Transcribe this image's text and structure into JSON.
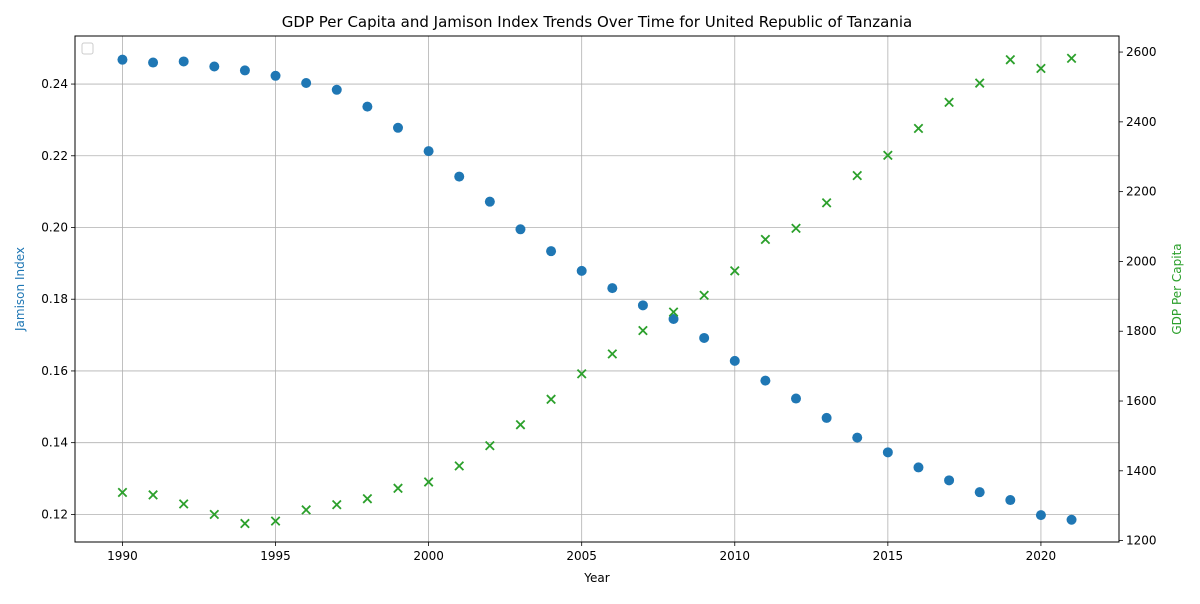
{
  "chart_data": {
    "type": "scatter",
    "title": "GDP Per Capita and Jamison Index Trends Over Time for United Republic of Tanzania",
    "xlabel": "Year",
    "ylabel_left": "Jamison Index",
    "ylabel_right": "GDP Per Capita",
    "xlim": [
      1988.45,
      1992.55
    ],
    "x_ticks": [
      1990,
      1995,
      2000,
      2005,
      2010,
      2015,
      2020
    ],
    "ylim_left": [
      0.1123,
      0.2534
    ],
    "y_ticks_left": [
      0.12,
      0.14,
      0.16,
      0.18,
      0.2,
      0.22,
      0.24
    ],
    "y_tick_labels_left": [
      "0.12",
      "0.14",
      "0.16",
      "0.18",
      "0.20",
      "0.22",
      "0.24"
    ],
    "ylim_right": [
      1196,
      2646
    ],
    "y_ticks_right": [
      1200,
      1400,
      1600,
      1800,
      2000,
      2200,
      2400,
      2600
    ],
    "y_tick_labels_right": [
      "1200",
      "1400",
      "1600",
      "1800",
      "2000",
      "2200",
      "2400",
      "2600"
    ],
    "grid": true,
    "legend": "top-left, empty",
    "colors": {
      "jamison": "#1f77b4",
      "gdp": "#2ca02c",
      "grid": "#b0b0b0",
      "axis": "#000000"
    },
    "series": [
      {
        "marker": "circle",
        "axis": "left",
        "x": [
          1990,
          1991,
          1992,
          1993,
          1994,
          1995,
          1996,
          1997,
          1998,
          1999,
          2000,
          2001,
          2002,
          2003,
          2004,
          2005,
          2006,
          2007,
          2008,
          2009,
          2010,
          2011,
          2012,
          2013,
          2014,
          2015,
          2016,
          2017,
          2018,
          2019,
          2020,
          2021
        ],
        "values": [
          0.2468,
          0.246,
          0.2463,
          0.2449,
          0.2438,
          0.2423,
          0.2403,
          0.2384,
          0.2337,
          0.2278,
          0.2213,
          0.2142,
          0.2072,
          0.1995,
          0.1934,
          0.1879,
          0.1831,
          0.1783,
          0.1745,
          0.1692,
          0.1628,
          0.1573,
          0.1523,
          0.1469,
          0.1414,
          0.1373,
          0.1331,
          0.1295,
          0.1262,
          0.124,
          0.1198,
          0.1185
        ]
      },
      {
        "marker": "x",
        "axis": "right",
        "x": [
          1990,
          1991,
          1992,
          1993,
          1994,
          1995,
          1996,
          1997,
          1998,
          1999,
          2000,
          2001,
          2002,
          2003,
          2004,
          2005,
          2006,
          2007,
          2008,
          2009,
          2010,
          2011,
          2012,
          2013,
          2014,
          2015,
          2016,
          2017,
          2018,
          2019,
          2020,
          2021
        ],
        "values": [
          1338,
          1331,
          1305,
          1275,
          1249,
          1256,
          1288,
          1303,
          1320,
          1350,
          1368,
          1414,
          1472,
          1532,
          1605,
          1678,
          1735,
          1802,
          1855,
          1903,
          1973,
          2063,
          2095,
          2168,
          2246,
          2304,
          2381,
          2456,
          2511,
          2578,
          2553,
          2582
        ]
      }
    ]
  }
}
